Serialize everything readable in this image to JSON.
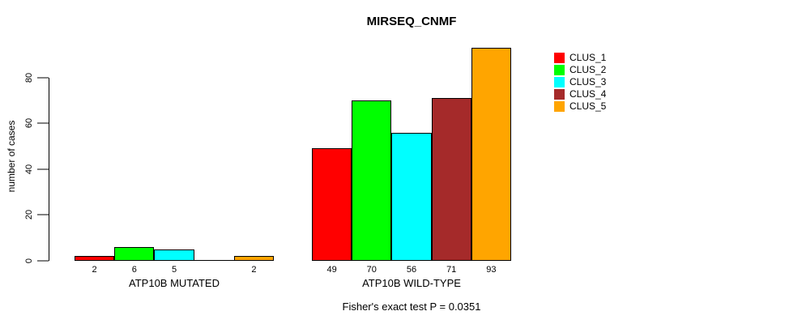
{
  "title": "MIRSEQ_CNMF",
  "ylabel": "number of cases",
  "footer": "Fisher's exact test P = 0.0351",
  "legend": [
    {
      "label": "CLUS_1",
      "color": "#FF0000"
    },
    {
      "label": "CLUS_2",
      "color": "#00FF00"
    },
    {
      "label": "CLUS_3",
      "color": "#00FFFF"
    },
    {
      "label": "CLUS_4",
      "color": "#A52A2A"
    },
    {
      "label": "CLUS_5",
      "color": "#FFA500"
    }
  ],
  "chart_data": {
    "type": "bar",
    "title": "MIRSEQ_CNMF",
    "xlabel": "",
    "ylabel": "number of cases",
    "ylim": [
      0,
      93
    ],
    "yticks": [
      0,
      20,
      40,
      60,
      80
    ],
    "grid": false,
    "legend_position": "right",
    "series_names": [
      "CLUS_1",
      "CLUS_2",
      "CLUS_3",
      "CLUS_4",
      "CLUS_5"
    ],
    "series_colors": [
      "#FF0000",
      "#00FF00",
      "#00FFFF",
      "#A52A2A",
      "#FFA500"
    ],
    "categories": [
      "ATP10B MUTATED",
      "ATP10B WILD-TYPE"
    ],
    "groups": [
      {
        "label": "ATP10B MUTATED",
        "values": [
          2,
          6,
          5,
          0,
          2
        ],
        "value_labels": [
          "2",
          "6",
          "5",
          "",
          "2"
        ]
      },
      {
        "label": "ATP10B WILD-TYPE",
        "values": [
          49,
          70,
          56,
          71,
          93
        ],
        "value_labels": [
          "49",
          "70",
          "56",
          "71",
          "93"
        ]
      }
    ],
    "annotation": "Fisher's exact test P = 0.0351"
  }
}
